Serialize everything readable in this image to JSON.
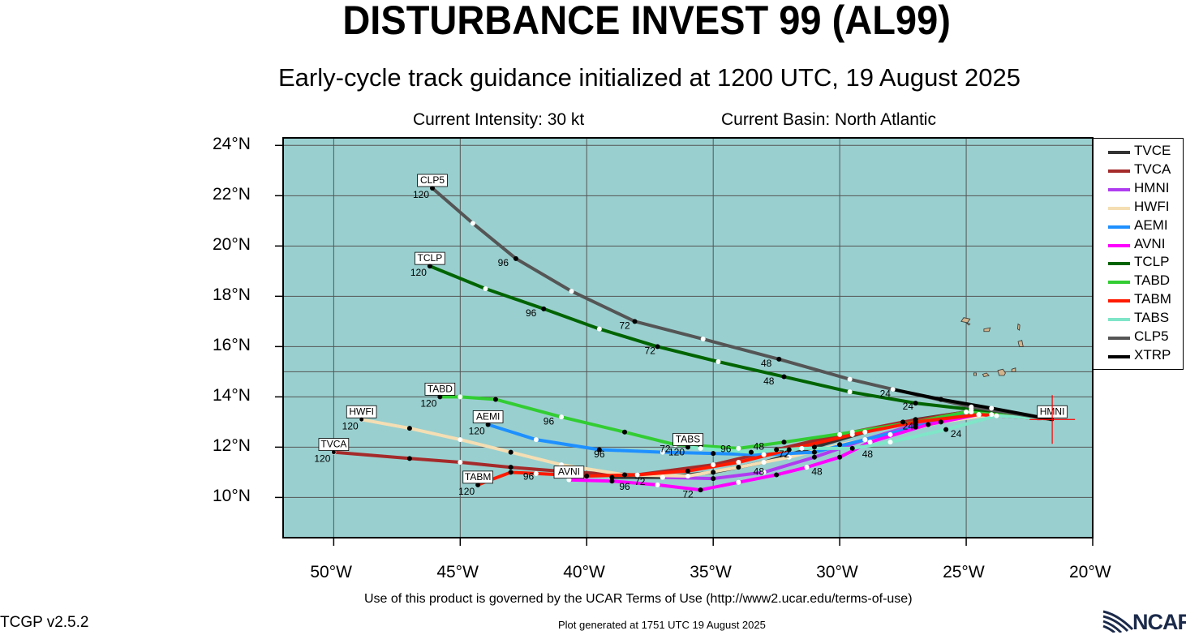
{
  "title": "DISTURBANCE INVEST 99 (AL99)",
  "subtitle": "Early-cycle track guidance initialized at 1200 UTC, 19 August 2025",
  "current_intensity": "Current Intensity: 30 kt",
  "current_basin": "Current Basin: North Atlantic",
  "footer_terms": "Use of this product is governed by the UCAR Terms of Use (http://www2.ucar.edu/terms-of-use)",
  "footer_generated": "Plot generated at 1751 UTC   19 August 2025",
  "version": "TCGP v2.5.2",
  "logo_text": "NCAR",
  "colors": {
    "ocean": "#99cfcf",
    "land": "#d2b48c",
    "grid": "#555555"
  },
  "map": {
    "lon_range": [
      -52,
      -20
    ],
    "lat_range": [
      8.4,
      24.3
    ],
    "lon_ticks": [
      {
        "lon": -50,
        "label": "50°W"
      },
      {
        "lon": -45,
        "label": "45°W"
      },
      {
        "lon": -40,
        "label": "40°W"
      },
      {
        "lon": -35,
        "label": "35°W"
      },
      {
        "lon": -30,
        "label": "30°W"
      },
      {
        "lon": -25,
        "label": "25°W"
      },
      {
        "lon": -20,
        "label": "20°W"
      }
    ],
    "lat_ticks": [
      {
        "lat": 10,
        "label": "10°N"
      },
      {
        "lat": 12,
        "label": "12°N"
      },
      {
        "lat": 14,
        "label": "14°N"
      },
      {
        "lat": 16,
        "label": "16°N"
      },
      {
        "lat": 18,
        "label": "18°N"
      },
      {
        "lat": 20,
        "label": "20°N"
      },
      {
        "lat": 22,
        "label": "22°N"
      },
      {
        "lat": 24,
        "label": "24°N"
      }
    ],
    "init_position": {
      "lon": -21.6,
      "lat": 13.1
    }
  },
  "tracks": [
    {
      "name": "TVCE",
      "color": "#333333",
      "box": false,
      "points": [
        [
          -21.6,
          13.1
        ],
        [
          -25,
          13.4
        ],
        [
          -27,
          13.1
        ],
        [
          -29,
          12.6
        ],
        [
          -31,
          12.0
        ],
        [
          -33,
          11.4
        ],
        [
          -35,
          11.0
        ],
        [
          -37,
          10.8
        ],
        [
          -39,
          10.8
        ]
      ],
      "hour_labels": []
    },
    {
      "name": "TVCA",
      "color": "#a52a2a",
      "box": true,
      "label_hour": "120",
      "points": [
        [
          -21.6,
          13.1
        ],
        [
          -25,
          13.4
        ],
        [
          -27.5,
          13.0
        ],
        [
          -30,
          12.5
        ],
        [
          -32.5,
          11.9
        ],
        [
          -35,
          11.3
        ],
        [
          -38,
          10.9
        ],
        [
          -40.5,
          11.0
        ],
        [
          -43,
          11.2
        ],
        [
          -45,
          11.4
        ],
        [
          -47,
          11.55
        ],
        [
          -50,
          11.8
        ]
      ],
      "hour_labels": []
    },
    {
      "name": "HMNI",
      "color": "#b03cf0",
      "box": true,
      "label_hour": "",
      "points": [
        [
          -21.6,
          13.1
        ],
        [
          -24.5,
          13.3
        ],
        [
          -27,
          12.9
        ],
        [
          -29,
          12.3
        ],
        [
          -31,
          11.6
        ],
        [
          -33,
          11.0
        ],
        [
          -35,
          10.75
        ],
        [
          -37,
          10.8
        ]
      ],
      "hour_labels": []
    },
    {
      "name": "HWFI",
      "color": "#f5deb3",
      "box": true,
      "label_hour": "120",
      "points": [
        [
          -21.6,
          13.1
        ],
        [
          -24,
          13.3
        ],
        [
          -26,
          13.0
        ],
        [
          -28,
          12.5
        ],
        [
          -30,
          12.1
        ],
        [
          -32,
          11.6
        ],
        [
          -34,
          11.2
        ],
        [
          -36,
          10.85
        ],
        [
          -38.5,
          10.9
        ],
        [
          -41,
          11.3
        ],
        [
          -43,
          11.8
        ],
        [
          -45,
          12.3
        ],
        [
          -47,
          12.75
        ],
        [
          -48.9,
          13.1
        ]
      ],
      "hour_labels": []
    },
    {
      "name": "AEMI",
      "color": "#1e90ff",
      "box": true,
      "label_hour": "120",
      "points": [
        [
          -21.6,
          13.1
        ],
        [
          -24.8,
          13.4
        ],
        [
          -27,
          12.8
        ],
        [
          -29,
          12.3
        ],
        [
          -31,
          11.8
        ],
        [
          -33,
          11.7
        ],
        [
          -35,
          11.75
        ],
        [
          -37,
          11.8
        ],
        [
          -39.5,
          11.9
        ],
        [
          -42,
          12.3
        ],
        [
          -43.9,
          12.9
        ]
      ],
      "hour_labels": [
        {
          "lon": -27.3,
          "lat": 12.7,
          "t": "24"
        },
        {
          "lon": -39.5,
          "lat": 11.6,
          "t": "96"
        }
      ]
    },
    {
      "name": "AVNI",
      "color": "#ff00ff",
      "box": true,
      "label_hour": "",
      "points": [
        [
          -21.6,
          13.1
        ],
        [
          -24.5,
          13.3
        ],
        [
          -26.5,
          12.9
        ],
        [
          -28.8,
          12.2
        ],
        [
          -30,
          11.6
        ],
        [
          -31.3,
          11.2
        ],
        [
          -32.5,
          10.9
        ],
        [
          -34,
          10.6
        ],
        [
          -35.5,
          10.3
        ],
        [
          -37.2,
          10.5
        ],
        [
          -39,
          10.65
        ],
        [
          -40.7,
          10.7
        ]
      ],
      "hour_labels": [
        {
          "lon": -30.9,
          "lat": 10.9,
          "t": "48"
        },
        {
          "lon": -36,
          "lat": 10.0,
          "t": "72"
        },
        {
          "lon": -38.5,
          "lat": 10.3,
          "t": "96"
        }
      ]
    },
    {
      "name": "TCLP",
      "color": "#006400",
      "box": true,
      "label_hour": "120",
      "points": [
        [
          -21.6,
          13.1
        ],
        [
          -24.8,
          13.5
        ],
        [
          -27,
          13.75
        ],
        [
          -29.6,
          14.2
        ],
        [
          -32.2,
          14.8
        ],
        [
          -34.8,
          15.4
        ],
        [
          -37.2,
          16.0
        ],
        [
          -39.5,
          16.7
        ],
        [
          -41.7,
          17.5
        ],
        [
          -44,
          18.3
        ],
        [
          -46.2,
          19.2
        ]
      ],
      "hour_labels": [
        {
          "lon": -27.3,
          "lat": 13.5,
          "t": "24"
        },
        {
          "lon": -32.8,
          "lat": 14.5,
          "t": "48"
        },
        {
          "lon": -37.5,
          "lat": 15.7,
          "t": "72"
        },
        {
          "lon": -42.2,
          "lat": 17.2,
          "t": "96"
        }
      ]
    },
    {
      "name": "TABD",
      "color": "#32cd32",
      "box": true,
      "label_hour": "120",
      "points": [
        [
          -21.6,
          13.1
        ],
        [
          -25,
          13.4
        ],
        [
          -27,
          13.0
        ],
        [
          -29.5,
          12.6
        ],
        [
          -32.2,
          12.2
        ],
        [
          -34,
          11.95
        ],
        [
          -35.5,
          12.05
        ],
        [
          -36.5,
          12.1
        ],
        [
          -38.5,
          12.6
        ],
        [
          -41,
          13.2
        ],
        [
          -43.6,
          13.9
        ],
        [
          -45,
          14.0
        ],
        [
          -45.8,
          14.0
        ]
      ],
      "hour_labels": [
        {
          "lon": -33.2,
          "lat": 11.9,
          "t": "48"
        },
        {
          "lon": -36.9,
          "lat": 11.8,
          "t": "72"
        },
        {
          "lon": -41.5,
          "lat": 12.9,
          "t": "96"
        }
      ]
    },
    {
      "name": "TABM",
      "color": "#ff1a00",
      "box": true,
      "label_hour": "120",
      "points": [
        [
          -21.6,
          13.1
        ],
        [
          -24.5,
          13.3
        ],
        [
          -27,
          13.0
        ],
        [
          -29.5,
          12.5
        ],
        [
          -32,
          11.9
        ],
        [
          -34,
          11.4
        ],
        [
          -36,
          11.05
        ],
        [
          -38,
          10.9
        ],
        [
          -40,
          10.85
        ],
        [
          -42,
          10.95
        ],
        [
          -43,
          11.0
        ],
        [
          -43.8,
          10.7
        ],
        [
          -44.3,
          10.5
        ]
      ],
      "hour_labels": [
        {
          "lon": -33.2,
          "lat": 10.9,
          "t": "48"
        },
        {
          "lon": -37.9,
          "lat": 10.5,
          "t": "72"
        },
        {
          "lon": -42.3,
          "lat": 10.7,
          "t": "96"
        }
      ]
    },
    {
      "name": "TABS",
      "color": "#7fe6c8",
      "box": true,
      "label_hour": "120",
      "points": [
        [
          -21.6,
          13.1
        ],
        [
          -23.8,
          13.25
        ],
        [
          -25.8,
          12.7
        ],
        [
          -28,
          12.2
        ],
        [
          -29.5,
          11.95
        ],
        [
          -31.5,
          11.95
        ],
        [
          -33.5,
          11.8
        ],
        [
          -35.5,
          11.95
        ],
        [
          -36,
          12.0
        ]
      ],
      "hour_labels": [
        {
          "lon": -25.4,
          "lat": 12.4,
          "t": "24"
        },
        {
          "lon": -28.9,
          "lat": 11.6,
          "t": "48"
        },
        {
          "lon": -32.2,
          "lat": 11.6,
          "t": "72"
        },
        {
          "lon": -34.5,
          "lat": 11.8,
          "t": "96"
        }
      ]
    },
    {
      "name": "CLP5",
      "color": "#555555",
      "box": true,
      "label_hour": "120",
      "points": [
        [
          -21.6,
          13.1
        ],
        [
          -24.8,
          13.6
        ],
        [
          -27.9,
          14.3
        ],
        [
          -29.6,
          14.7
        ],
        [
          -32.4,
          15.5
        ],
        [
          -35.4,
          16.3
        ],
        [
          -38.1,
          17.0
        ],
        [
          -40.6,
          18.2
        ],
        [
          -42.8,
          19.5
        ],
        [
          -44.5,
          20.9
        ],
        [
          -46.1,
          22.3
        ]
      ],
      "hour_labels": [
        {
          "lon": -28.2,
          "lat": 14.0,
          "t": "24"
        },
        {
          "lon": -32.9,
          "lat": 15.2,
          "t": "48"
        },
        {
          "lon": -38.5,
          "lat": 16.7,
          "t": "72"
        },
        {
          "lon": -43.3,
          "lat": 19.2,
          "t": "96"
        }
      ]
    },
    {
      "name": "XTRP",
      "color": "#000000",
      "box": false,
      "points": [
        [
          -21.6,
          13.1
        ],
        [
          -24,
          13.55
        ],
        [
          -26,
          13.9
        ],
        [
          -27.9,
          14.3
        ]
      ],
      "hour_labels": []
    }
  ],
  "extra_boxes": [
    {
      "text": "HMNI",
      "lon": -21.6,
      "lat": 13.1,
      "dx": 0,
      "dy": -8
    },
    {
      "text": "AVNI",
      "lon": -40.7,
      "lat": 10.7,
      "dx": 0,
      "dy": -8
    },
    {
      "text": "TABS",
      "lon": -36.0,
      "lat": 12.0,
      "dx": 0,
      "dy": -8
    }
  ],
  "islands": [
    [
      [
        -24.35,
        14.9
      ],
      [
        -24.2,
        14.95
      ],
      [
        -24.1,
        14.85
      ],
      [
        -24.3,
        14.8
      ]
    ],
    [
      [
        -23.75,
        15.05
      ],
      [
        -23.55,
        15.1
      ],
      [
        -23.45,
        14.95
      ],
      [
        -23.5,
        14.85
      ],
      [
        -23.7,
        14.85
      ]
    ],
    [
      [
        -23.2,
        15.1
      ],
      [
        -23.05,
        15.15
      ],
      [
        -23.05,
        15.0
      ],
      [
        -23.2,
        15.0
      ]
    ],
    [
      [
        -24.7,
        14.95
      ],
      [
        -24.6,
        14.95
      ],
      [
        -24.6,
        14.85
      ],
      [
        -24.7,
        14.85
      ]
    ],
    [
      [
        -25.1,
        17.15
      ],
      [
        -24.85,
        17.1
      ],
      [
        -24.95,
        16.95
      ],
      [
        -25.2,
        17.0
      ]
    ],
    [
      [
        -24.3,
        16.7
      ],
      [
        -24.05,
        16.75
      ],
      [
        -24.1,
        16.6
      ],
      [
        -24.3,
        16.6
      ]
    ],
    [
      [
        -25.0,
        16.95
      ],
      [
        -24.85,
        16.9
      ],
      [
        -24.9,
        16.85
      ]
    ],
    [
      [
        -22.95,
        16.2
      ],
      [
        -22.8,
        16.25
      ],
      [
        -22.75,
        16.0
      ],
      [
        -22.9,
        16.0
      ]
    ],
    [
      [
        -22.95,
        16.9
      ],
      [
        -22.88,
        16.85
      ],
      [
        -22.9,
        16.65
      ],
      [
        -22.97,
        16.7
      ]
    ]
  ]
}
